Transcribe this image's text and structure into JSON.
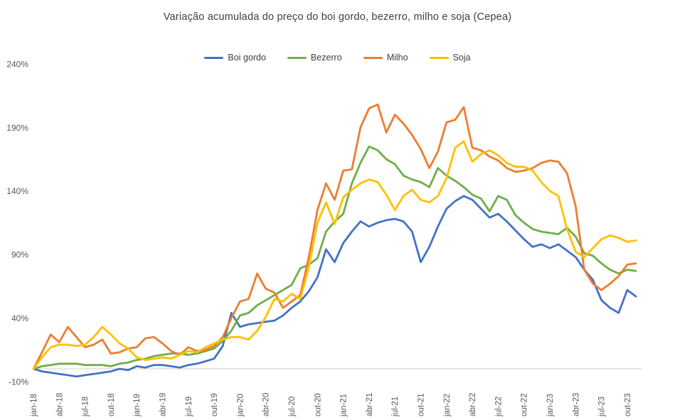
{
  "chart_data": {
    "type": "line",
    "title": "Variação acumulada do preço do boi gordo, bezerro, milho e soja (Cepea)",
    "unit": "%",
    "ylim": [
      -10,
      240
    ],
    "yticks": [
      240,
      190,
      140,
      90,
      40,
      -10
    ],
    "grid": "none",
    "legend_position": "top",
    "x_tick_step": 3,
    "x": [
      "jan-18",
      "fev-18",
      "mar-18",
      "abr-18",
      "mai-18",
      "jun-18",
      "jul-18",
      "ago-18",
      "set-18",
      "out-18",
      "nov-18",
      "dez-18",
      "jan-19",
      "fev-19",
      "mar-19",
      "abr-19",
      "mai-19",
      "jun-19",
      "jul-19",
      "ago-19",
      "set-19",
      "out-19",
      "nov-19",
      "dez-19",
      "jan-20",
      "fev-20",
      "mar-20",
      "abr-20",
      "mai-20",
      "jun-20",
      "jul-20",
      "ago-20",
      "set-20",
      "out-20",
      "nov-20",
      "dez-20",
      "jan-21",
      "fev-21",
      "mar-21",
      "abr-21",
      "mai-21",
      "jun-21",
      "jul-21",
      "ago-21",
      "set-21",
      "out-21",
      "nov-21",
      "dez-21",
      "jan-22",
      "fev-22",
      "mar-22",
      "abr-22",
      "mai-22",
      "jun-22",
      "jul-22",
      "ago-22",
      "set-22",
      "out-22",
      "nov-22",
      "dez-22",
      "jan-23",
      "fev-23",
      "mar-23",
      "abr-23",
      "mai-23",
      "jun-23",
      "jul-23",
      "ago-23",
      "set-23",
      "out-23",
      "nov-23"
    ],
    "series": [
      {
        "name": "Boi gordo",
        "color": "#4472C4",
        "values": [
          0,
          -2,
          -3,
          -4,
          -5,
          -6,
          -5,
          -4,
          -3,
          -2,
          0,
          -1,
          2,
          1,
          3,
          3,
          2,
          1,
          3,
          4,
          6,
          8,
          18,
          44,
          33,
          35,
          36,
          37,
          38,
          42,
          48,
          53,
          61,
          72,
          94,
          84,
          99,
          108,
          116,
          112,
          115,
          117,
          118,
          116,
          108,
          84,
          96,
          112,
          126,
          132,
          136,
          133,
          126,
          119,
          122,
          116,
          109,
          102,
          96,
          98,
          95,
          98,
          93,
          88,
          78,
          70,
          54,
          48,
          44,
          62,
          57
        ]
      },
      {
        "name": "Bezerro",
        "color": "#70AD47",
        "values": [
          0,
          2,
          3,
          4,
          4,
          4,
          3,
          3,
          3,
          2,
          4,
          5,
          7,
          8,
          10,
          11,
          12,
          12,
          11,
          12,
          14,
          16,
          22,
          30,
          42,
          44,
          50,
          54,
          58,
          62,
          66,
          79,
          82,
          87,
          108,
          116,
          122,
          146,
          162,
          175,
          172,
          165,
          161,
          152,
          149,
          147,
          143,
          158,
          152,
          148,
          143,
          137,
          134,
          124,
          136,
          133,
          121,
          115,
          110,
          108,
          107,
          106,
          111,
          104,
          91,
          89,
          83,
          78,
          75,
          78,
          77
        ]
      },
      {
        "name": "Milho",
        "color": "#ED7D31",
        "values": [
          0,
          13,
          27,
          21,
          33,
          25,
          17,
          19,
          23,
          12,
          13,
          16,
          17,
          24,
          25,
          20,
          14,
          11,
          17,
          14,
          15,
          18,
          25,
          40,
          53,
          55,
          75,
          63,
          60,
          48,
          53,
          58,
          88,
          125,
          146,
          133,
          156,
          157,
          190,
          205,
          208,
          186,
          200,
          193,
          184,
          173,
          158,
          171,
          194,
          196,
          206,
          174,
          172,
          167,
          164,
          158,
          155,
          156,
          158,
          162,
          164,
          163,
          154,
          128,
          78,
          67,
          62,
          67,
          73,
          82,
          83
        ]
      },
      {
        "name": "Soja",
        "color": "#FFC000",
        "values": [
          0,
          9,
          17,
          19,
          19,
          18,
          19,
          25,
          33,
          27,
          20,
          16,
          9,
          7,
          8,
          9,
          8,
          11,
          14,
          13,
          17,
          20,
          23,
          25,
          25,
          23,
          30,
          41,
          55,
          53,
          59,
          55,
          80,
          115,
          131,
          114,
          135,
          141,
          146,
          149,
          147,
          137,
          125,
          136,
          141,
          133,
          131,
          136,
          150,
          174,
          179,
          163,
          169,
          172,
          168,
          162,
          159,
          159,
          156,
          147,
          140,
          136,
          110,
          92,
          88,
          95,
          102,
          105,
          103,
          100,
          101
        ]
      }
    ]
  },
  "colors": {
    "axis_line": "#D9D9D9",
    "tick_label": "#595959",
    "title": "#3f3f3f",
    "background": "#ffffff"
  }
}
